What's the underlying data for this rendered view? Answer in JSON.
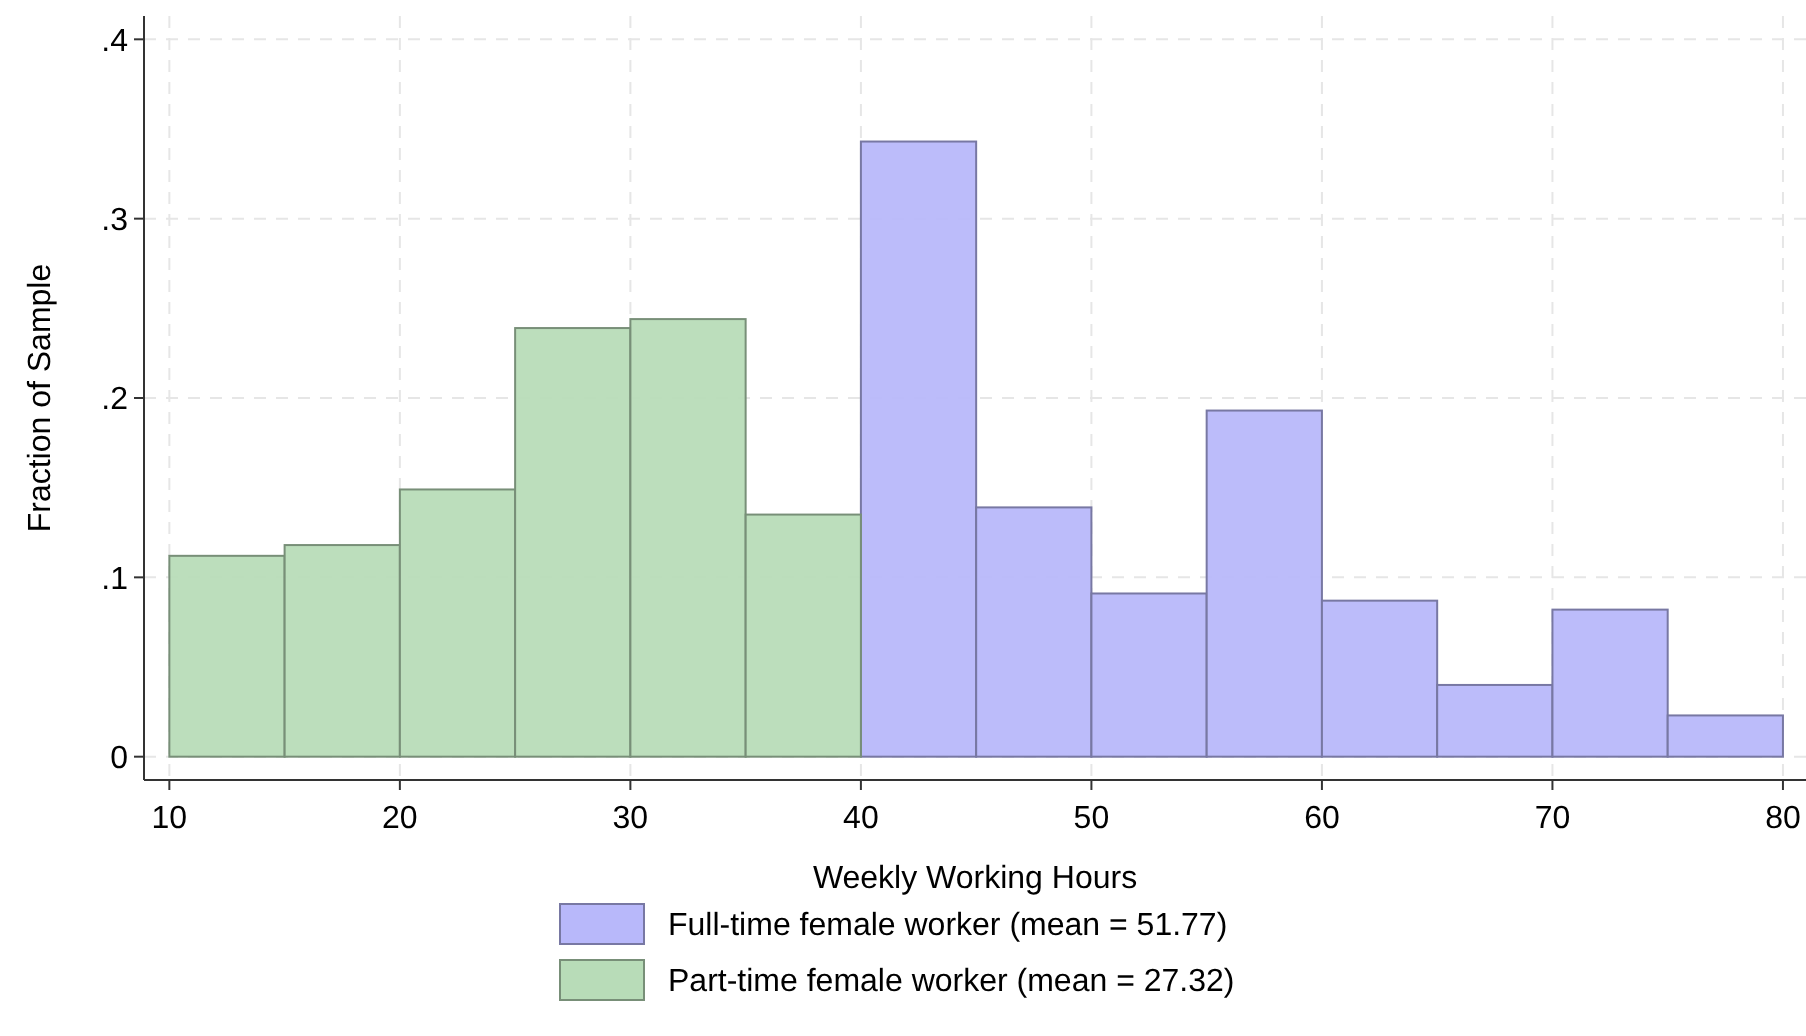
{
  "chart_data": {
    "type": "histogram",
    "xlabel": "Weekly Working Hours",
    "ylabel": "Fraction of Sample",
    "xlim": [
      8.9,
      81
    ],
    "xticks": [
      10,
      20,
      30,
      40,
      50,
      60,
      70,
      80
    ],
    "ylim": [
      -0.013,
      0.413
    ],
    "yticks": [
      0,
      {
        "value": 0.1,
        "label": ".1"
      },
      {
        "value": 0.2,
        "label": ".2"
      },
      {
        "value": 0.3,
        "label": ".3"
      },
      {
        "value": 0.4,
        "label": ".4"
      }
    ],
    "grid": true,
    "legend": "bottom",
    "bins": [
      10,
      15,
      20,
      25,
      30,
      35,
      40,
      45,
      50,
      55,
      60,
      65,
      70,
      75,
      80
    ],
    "series": [
      {
        "name": "Full-time female worker (mean = 51.77)",
        "color": "#b8b8fa",
        "values": [
          null,
          null,
          null,
          null,
          null,
          null,
          0.343,
          0.139,
          0.091,
          0.193,
          0.087,
          0.04,
          0.082,
          0.023
        ]
      },
      {
        "name": "Part-time female worker (mean = 27.32)",
        "color": "#b8dcb8",
        "values": [
          0.112,
          0.118,
          0.149,
          0.239,
          0.244,
          0.135,
          null,
          null,
          null,
          null,
          null,
          null,
          null,
          null
        ]
      }
    ]
  }
}
